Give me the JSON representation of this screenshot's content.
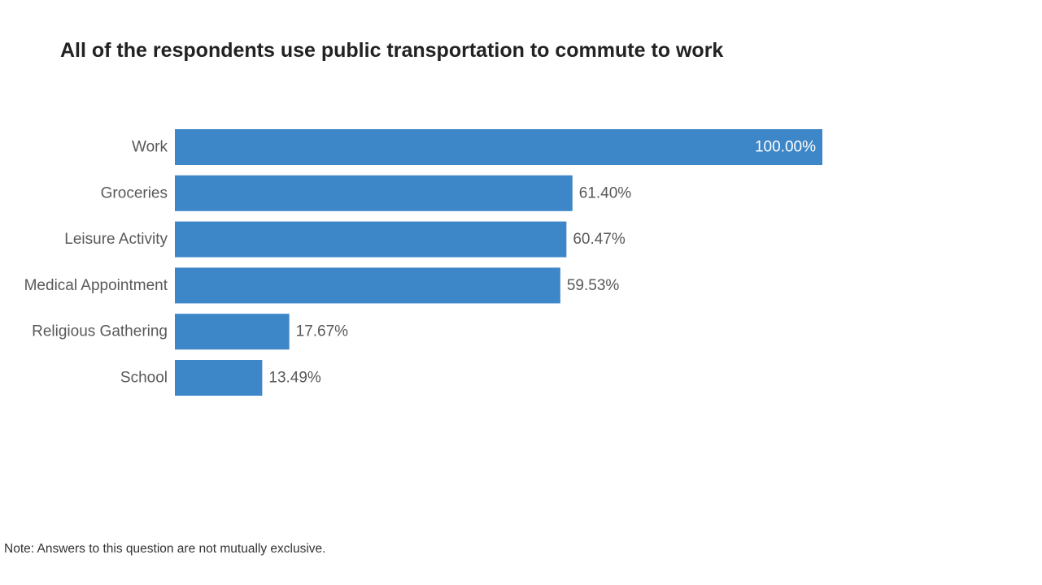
{
  "title": "All of the respondents use public transportation to commute to work",
  "note": "Note: Answers to this question are not mutually exclusive.",
  "colors": {
    "bar": "#3d86c8",
    "label_outside": "#595959",
    "label_inside": "#ffffff",
    "category_text": "#595959"
  },
  "chart_data": {
    "type": "bar",
    "orientation": "horizontal",
    "categories": [
      "Work",
      "Groceries",
      "Leisure Activity",
      "Medical Appointment",
      "Religious Gathering",
      "School"
    ],
    "values": [
      100.0,
      61.4,
      60.47,
      59.53,
      17.67,
      13.49
    ],
    "data_labels": [
      "100.00%",
      "61.40%",
      "60.47%",
      "59.53%",
      "17.67%",
      "13.49%"
    ],
    "xlim": [
      0,
      100
    ],
    "unit": "%",
    "grid": false,
    "legend": "none"
  }
}
